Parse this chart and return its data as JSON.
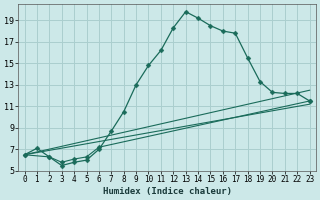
{
  "xlabel": "Humidex (Indice chaleur)",
  "bg_color": "#cce8e8",
  "grid_color": "#aacece",
  "line_color": "#1a6b5a",
  "xlim": [
    -0.5,
    23.5
  ],
  "ylim": [
    5,
    20.5
  ],
  "xticks": [
    0,
    1,
    2,
    3,
    4,
    5,
    6,
    7,
    8,
    9,
    10,
    11,
    12,
    13,
    14,
    15,
    16,
    17,
    18,
    19,
    20,
    21,
    22,
    23
  ],
  "yticks": [
    5,
    7,
    9,
    11,
    13,
    15,
    17,
    19
  ],
  "main_x": [
    0,
    1,
    2,
    3,
    4,
    5,
    6,
    7,
    8,
    9,
    10,
    11,
    12,
    13,
    14,
    15,
    16,
    17,
    18,
    19,
    20,
    21,
    22,
    23
  ],
  "main_y": [
    6.5,
    7.1,
    6.3,
    5.5,
    5.8,
    6.0,
    7.0,
    8.7,
    10.5,
    13.0,
    14.8,
    16.2,
    18.3,
    19.8,
    19.2,
    18.5,
    18.0,
    17.8,
    15.5,
    13.3,
    12.3,
    12.2,
    12.2,
    11.5
  ],
  "line2_x": [
    0,
    2,
    3,
    4,
    5,
    6,
    23
  ],
  "line2_y": [
    6.5,
    6.3,
    5.8,
    6.1,
    6.3,
    7.2,
    11.5
  ],
  "line3_x": [
    0,
    23
  ],
  "line3_y": [
    6.5,
    11.2
  ],
  "line4_x": [
    0,
    23
  ],
  "line4_y": [
    6.5,
    12.5
  ]
}
